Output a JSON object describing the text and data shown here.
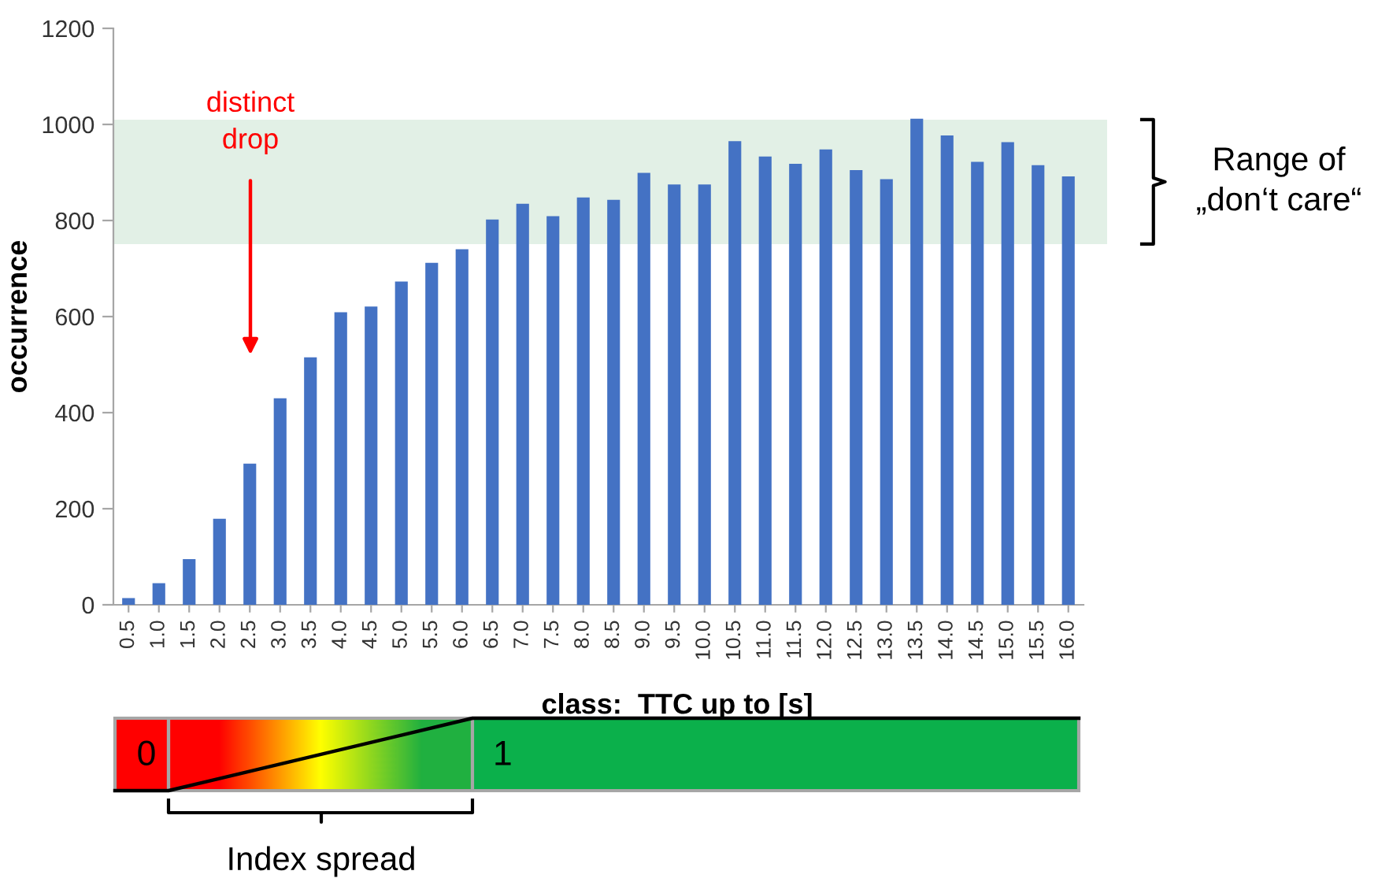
{
  "chart_data": {
    "type": "bar",
    "categories": [
      "0.5",
      "1.0",
      "1.5",
      "2.0",
      "2.5",
      "3.0",
      "3.5",
      "4.0",
      "4.5",
      "5.0",
      "5.5",
      "6.0",
      "6.5",
      "7.0",
      "7.5",
      "8.0",
      "8.5",
      "9.0",
      "9.5",
      "10.0",
      "10.5",
      "11.0",
      "11.5",
      "12.0",
      "12.5",
      "13.0",
      "13.5",
      "14.0",
      "14.5",
      "15.0",
      "15.5",
      "16.0"
    ],
    "values": [
      14,
      45,
      95,
      179,
      294,
      430,
      515,
      609,
      621,
      673,
      712,
      740,
      802,
      835,
      809,
      848,
      843,
      899,
      875,
      875,
      965,
      933,
      918,
      948,
      905,
      886,
      1012,
      977,
      922,
      963,
      915,
      892
    ],
    "color": "#4472c4",
    "xlabel": "class:  TTC up to [s]",
    "ylabel": "occurrence",
    "ylim": [
      0,
      1200
    ],
    "yticks": [
      0,
      200,
      400,
      600,
      800,
      1000,
      1200
    ],
    "bands": [
      {
        "axis": "y",
        "from": 751,
        "to": 1010,
        "label": "Range of\n„don‘t care“",
        "color": "#e2f0e6"
      }
    ],
    "annotations": [
      "distinct\ndrop",
      "0",
      "1",
      "Index spread"
    ]
  }
}
